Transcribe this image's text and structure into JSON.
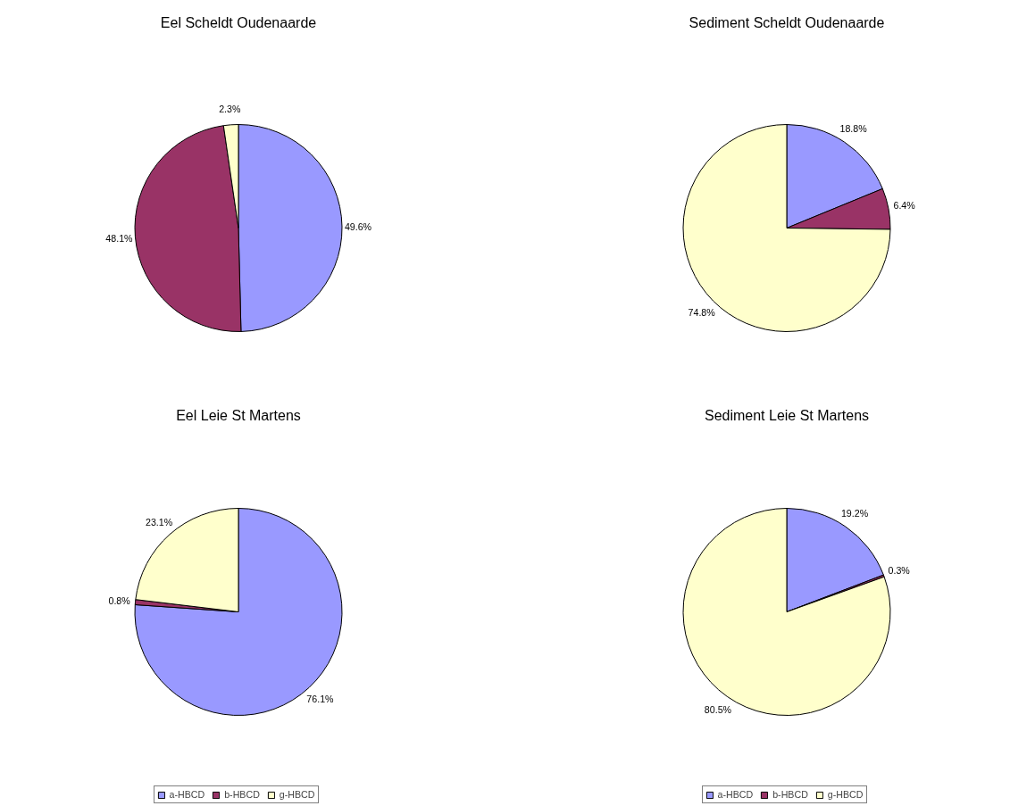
{
  "chart_data": [
    {
      "type": "pie",
      "title": "Eel Scheldt Oudenaarde",
      "categories": [
        null,
        null,
        null
      ],
      "values": [
        49.6,
        48.1,
        2.3
      ],
      "colors": [
        "#9999ff",
        "#993366",
        "#ffffcc"
      ],
      "value_labels": [
        "49.6%",
        "48.1%",
        "2.3%"
      ],
      "legend": false
    },
    {
      "type": "pie",
      "title": "Sediment Scheldt Oudenaarde",
      "categories": [
        null,
        null,
        null
      ],
      "values": [
        18.8,
        6.4,
        74.8
      ],
      "colors": [
        "#9999ff",
        "#993366",
        "#ffffcc"
      ],
      "value_labels": [
        "18.8%",
        "6.4%",
        "74.8%"
      ],
      "legend": false
    },
    {
      "type": "pie",
      "title": "Eel Leie St Martens",
      "categories": [
        "a-HBCD",
        "b-HBCD",
        "g-HBCD"
      ],
      "values": [
        76.1,
        0.8,
        23.1
      ],
      "colors": [
        "#9999ff",
        "#993366",
        "#ffffcc"
      ],
      "value_labels": [
        "76.1%",
        "0.8%",
        "23.1%"
      ],
      "legend": "bottom"
    },
    {
      "type": "pie",
      "title": "Sediment Leie St Martens",
      "categories": [
        "a-HBCD",
        "b-HBCD",
        "g-HBCD"
      ],
      "values": [
        19.2,
        0.3,
        80.5
      ],
      "colors": [
        "#9999ff",
        "#993366",
        "#ffffcc"
      ],
      "value_labels": [
        "19.2%",
        "0.3%",
        "80.5%"
      ],
      "legend": "bottom"
    }
  ]
}
